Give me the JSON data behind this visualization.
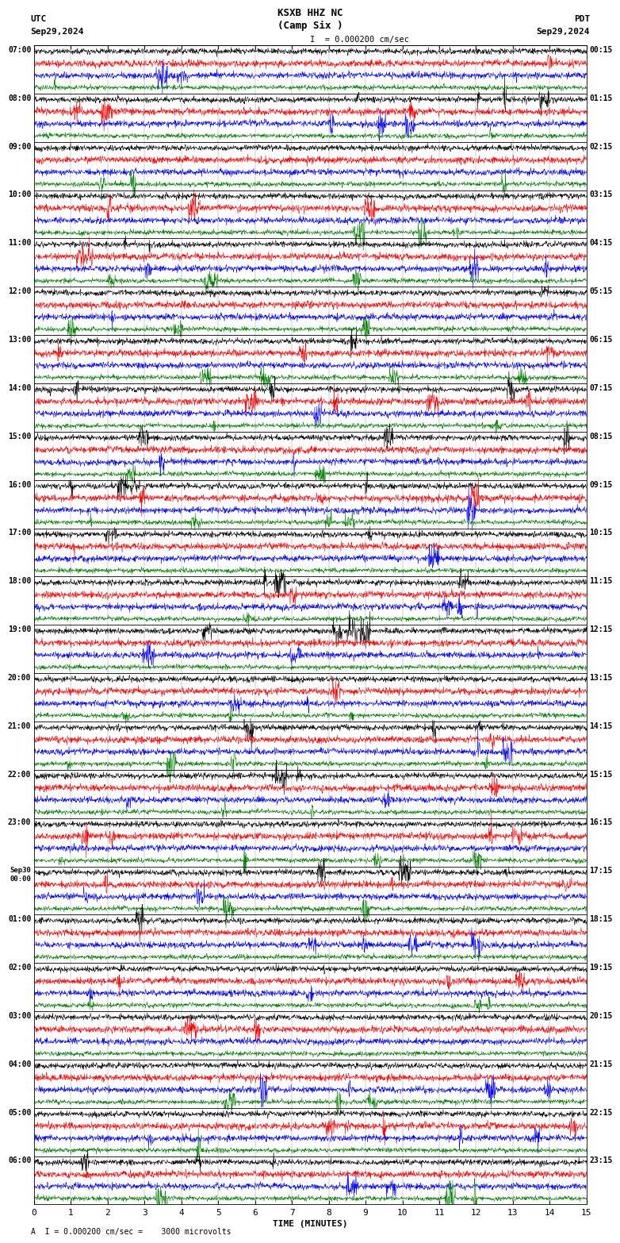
{
  "title_line1": "KSXB HHZ NC",
  "title_line2": "(Camp Six )",
  "scale_text": "= 0.000200 cm/sec",
  "bottom_text": "A  I = 0.000200 cm/sec =    3000 microvolts",
  "utc_label": "UTC",
  "date_left": "Sep29,2024",
  "date_right": "Sep29,2024",
  "pdt_label": "PDT",
  "xlabel": "TIME (MINUTES)",
  "x_ticks": [
    0,
    1,
    2,
    3,
    4,
    5,
    6,
    7,
    8,
    9,
    10,
    11,
    12,
    13,
    14,
    15
  ],
  "background_color": "#ffffff",
  "trace_colors": [
    "black",
    "red",
    "blue",
    "green"
  ],
  "rows_per_hour": 4,
  "n_hours": 24,
  "fig_width": 8.5,
  "fig_height": 15.84,
  "left_labels": [
    "07:00",
    "08:00",
    "09:00",
    "10:00",
    "11:00",
    "12:00",
    "13:00",
    "14:00",
    "15:00",
    "16:00",
    "17:00",
    "18:00",
    "19:00",
    "20:00",
    "21:00",
    "22:00",
    "23:00",
    "Sep30\n00:00",
    "01:00",
    "02:00",
    "03:00",
    "04:00",
    "05:00",
    "06:00"
  ],
  "right_labels": [
    "00:15",
    "01:15",
    "02:15",
    "03:15",
    "04:15",
    "05:15",
    "06:15",
    "07:15",
    "08:15",
    "09:15",
    "10:15",
    "11:15",
    "12:15",
    "13:15",
    "14:15",
    "15:15",
    "16:15",
    "17:15",
    "18:15",
    "19:15",
    "20:15",
    "21:15",
    "22:15",
    "23:15"
  ],
  "amplitude": 0.38,
  "noise_base": 0.28,
  "linewidth": 0.4
}
